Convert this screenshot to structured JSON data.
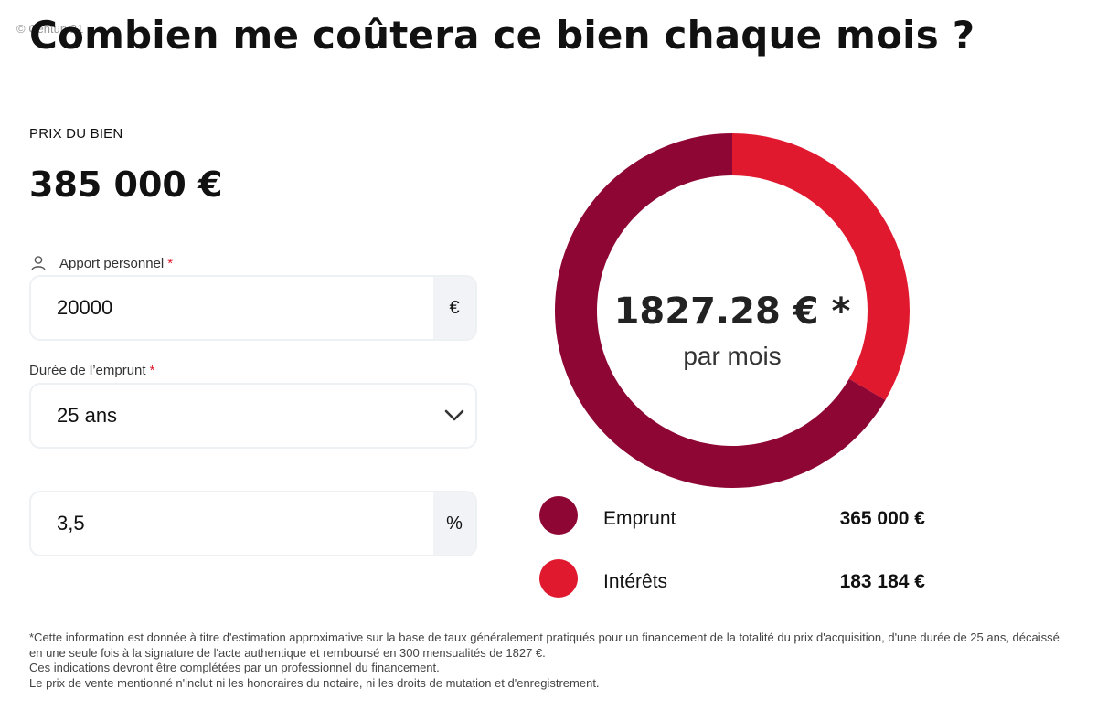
{
  "watermark": "© Century21",
  "title": "Combien me coûtera ce bien chaque mois ?",
  "price": {
    "label": "PRIX DU BIEN",
    "value": "385 000 €"
  },
  "apport": {
    "label": "Apport personnel",
    "required_mark": "*",
    "value": "20000",
    "unit": "€"
  },
  "duree": {
    "label": "Durée de l’emprunt",
    "required_mark": "*",
    "selected": "25 ans"
  },
  "taux": {
    "value": "3,5",
    "unit": "%"
  },
  "summary": {
    "monthly_amount": "1827.28 € *",
    "monthly_sub": "par mois"
  },
  "chart_data": {
    "type": "pie",
    "categories": [
      "Emprunt",
      "Intérêts"
    ],
    "values": [
      365000,
      183184
    ],
    "colors": [
      "#8e0633",
      "#e0192f"
    ],
    "donut": true
  },
  "legend": [
    {
      "label": "Emprunt",
      "value": "365 000 €",
      "color": "#8e0633"
    },
    {
      "label": "Intérêts",
      "value": "183 184 €",
      "color": "#e0192f"
    }
  ],
  "footnote": [
    "*Cette information est donnée à titre d'estimation approximative sur la base de taux généralement pratiqués pour un financement de la totalité du prix d'acquisition, d'une durée de 25 ans, décaissé en une seule fois à la signature de l'acte authentique et remboursé en 300 mensualités de 1827 €.",
    "Ces indications devront être complétées par un professionnel du financement.",
    "Le prix de vente mentionné n'inclut ni les honoraires du notaire, ni les droits de mutation et d'enregistrement."
  ],
  "icons": {
    "user": "user-icon",
    "chevron": "chevron-down-icon"
  }
}
